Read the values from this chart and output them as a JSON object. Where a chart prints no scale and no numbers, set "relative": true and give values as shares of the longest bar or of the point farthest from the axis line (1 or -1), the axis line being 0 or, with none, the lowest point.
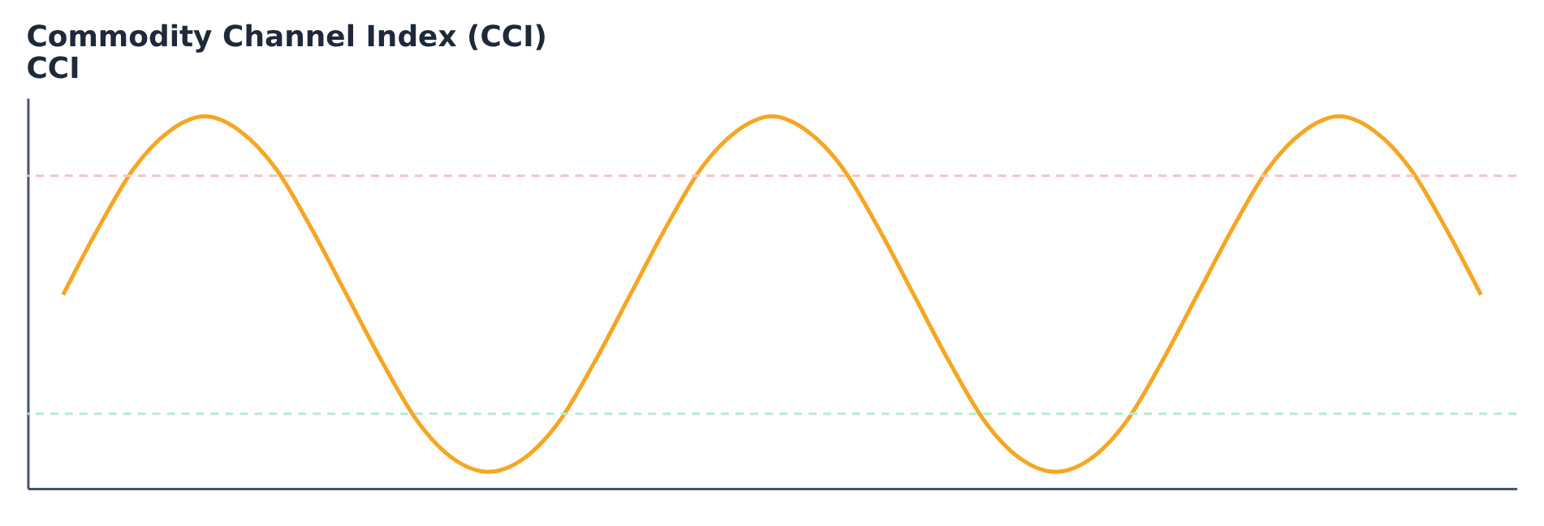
{
  "chart_data": {
    "type": "line",
    "title": "Commodity Channel Index (CCI)",
    "subtitle": "CCI",
    "relative": true,
    "categories": [
      null,
      null,
      null,
      null,
      null,
      null,
      null,
      null,
      null,
      null,
      null,
      null,
      null,
      null,
      null,
      null,
      null,
      null,
      null,
      null,
      null,
      null,
      null,
      null,
      null,
      null,
      null,
      null,
      null,
      null,
      null,
      null,
      null,
      null,
      null,
      null,
      null,
      null,
      null,
      null,
      null
    ],
    "series": [
      {
        "color": "#f5a623",
        "values": [
          0.52,
          0.7,
          0.86,
          0.96,
          1.0,
          0.96,
          0.86,
          0.7,
          0.52,
          0.34,
          0.18,
          0.08,
          0.044,
          0.08,
          0.18,
          0.34,
          0.52,
          0.7,
          0.86,
          0.96,
          1.0,
          0.96,
          0.86,
          0.7,
          0.52,
          0.34,
          0.18,
          0.08,
          0.044,
          0.08,
          0.18,
          0.34,
          0.52,
          0.7,
          0.86,
          0.96,
          1.0,
          0.96,
          0.86,
          0.7,
          0.52
        ]
      }
    ],
    "ref_lines": [
      {
        "axis": "y",
        "value": 0.84,
        "color": "#f8c4c0",
        "line_style": "dashed"
      },
      {
        "axis": "y",
        "value": 0.2,
        "color": "#b8eccb",
        "line_style": "dashed"
      }
    ],
    "grid": false,
    "marker": "none",
    "line_style": "solid",
    "tick_labels": false
  }
}
